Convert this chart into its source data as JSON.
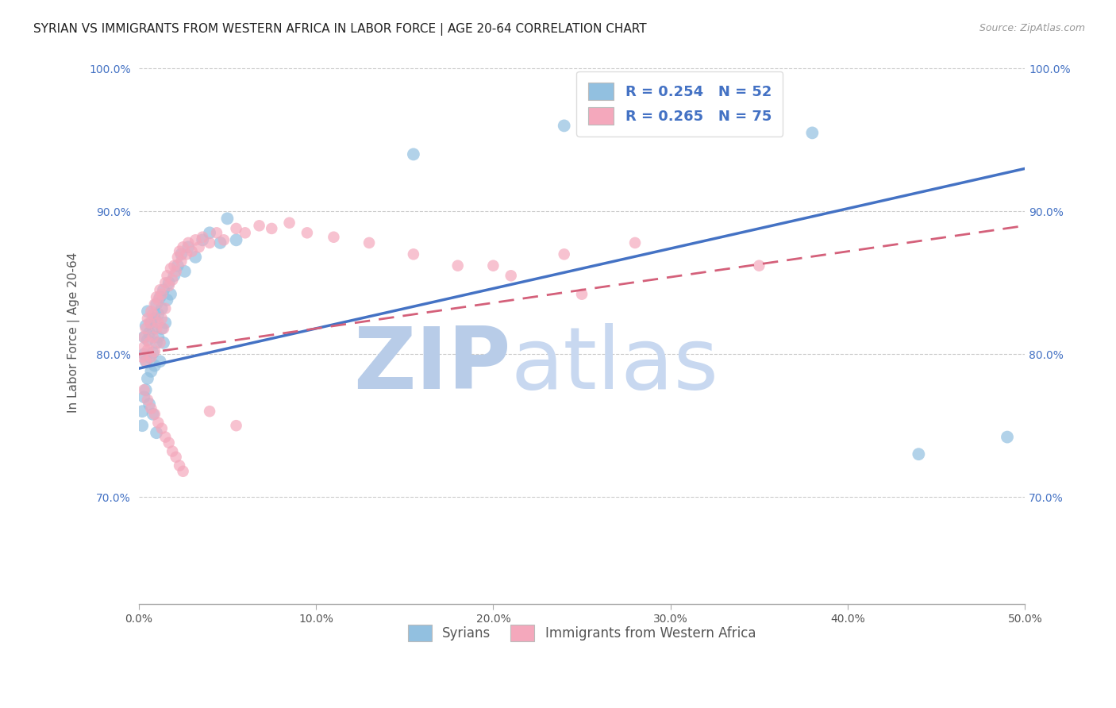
{
  "title": "SYRIAN VS IMMIGRANTS FROM WESTERN AFRICA IN LABOR FORCE | AGE 20-64 CORRELATION CHART",
  "source": "Source: ZipAtlas.com",
  "ylabel": "In Labor Force | Age 20-64",
  "xlim": [
    0.0,
    0.5
  ],
  "ylim": [
    0.625,
    1.005
  ],
  "xticks": [
    0.0,
    0.1,
    0.2,
    0.3,
    0.4,
    0.5
  ],
  "xtick_labels": [
    "0.0%",
    "10.0%",
    "20.0%",
    "30.0%",
    "40.0%",
    "50.0%"
  ],
  "yticks": [
    0.7,
    0.8,
    0.9,
    1.0
  ],
  "ytick_labels": [
    "70.0%",
    "80.0%",
    "90.0%",
    "100.0%"
  ],
  "grid_color": "#cccccc",
  "background_color": "#ffffff",
  "title_fontsize": 11,
  "tick_fontsize": 10,
  "legend_r1": "R = 0.254   N = 52",
  "legend_r2": "R = 0.265   N = 75",
  "legend_label1": "Syrians",
  "legend_label2": "Immigrants from Western Africa",
  "color_blue": "#92C0E0",
  "color_pink": "#F4A8BC",
  "color_blue_dark": "#4472C4",
  "color_pink_dark": "#D4607A",
  "watermark_zip": "ZIP",
  "watermark_atlas": "atlas",
  "watermark_color": "#C8D8F0",
  "syrians_x": [
    0.003,
    0.003,
    0.004,
    0.004,
    0.005,
    0.005,
    0.005,
    0.006,
    0.006,
    0.007,
    0.007,
    0.008,
    0.008,
    0.009,
    0.009,
    0.01,
    0.01,
    0.011,
    0.011,
    0.012,
    0.012,
    0.013,
    0.013,
    0.014,
    0.014,
    0.015,
    0.016,
    0.017,
    0.018,
    0.02,
    0.022,
    0.024,
    0.026,
    0.028,
    0.032,
    0.036,
    0.04,
    0.046,
    0.05,
    0.055,
    0.002,
    0.002,
    0.003,
    0.004,
    0.006,
    0.008,
    0.01,
    0.24,
    0.38,
    0.44,
    0.49,
    0.155
  ],
  "syrians_y": [
    0.8,
    0.812,
    0.795,
    0.82,
    0.783,
    0.81,
    0.83,
    0.798,
    0.815,
    0.788,
    0.822,
    0.801,
    0.818,
    0.792,
    0.825,
    0.808,
    0.835,
    0.812,
    0.828,
    0.795,
    0.84,
    0.818,
    0.832,
    0.808,
    0.845,
    0.822,
    0.838,
    0.85,
    0.842,
    0.855,
    0.862,
    0.87,
    0.858,
    0.875,
    0.868,
    0.88,
    0.885,
    0.878,
    0.895,
    0.88,
    0.76,
    0.75,
    0.77,
    0.775,
    0.765,
    0.758,
    0.745,
    0.96,
    0.955,
    0.73,
    0.742,
    0.94
  ],
  "western_africa_x": [
    0.002,
    0.003,
    0.003,
    0.004,
    0.004,
    0.005,
    0.005,
    0.006,
    0.006,
    0.007,
    0.007,
    0.008,
    0.008,
    0.009,
    0.009,
    0.01,
    0.01,
    0.011,
    0.011,
    0.012,
    0.012,
    0.013,
    0.013,
    0.014,
    0.015,
    0.015,
    0.016,
    0.017,
    0.018,
    0.019,
    0.02,
    0.021,
    0.022,
    0.023,
    0.024,
    0.025,
    0.027,
    0.028,
    0.03,
    0.032,
    0.034,
    0.036,
    0.04,
    0.044,
    0.048,
    0.055,
    0.06,
    0.068,
    0.075,
    0.085,
    0.095,
    0.11,
    0.13,
    0.155,
    0.18,
    0.21,
    0.25,
    0.003,
    0.005,
    0.007,
    0.009,
    0.011,
    0.013,
    0.015,
    0.017,
    0.019,
    0.021,
    0.023,
    0.025,
    0.04,
    0.055,
    0.2,
    0.24,
    0.28,
    0.35
  ],
  "western_africa_y": [
    0.798,
    0.805,
    0.812,
    0.795,
    0.818,
    0.803,
    0.825,
    0.808,
    0.822,
    0.798,
    0.83,
    0.812,
    0.828,
    0.802,
    0.835,
    0.818,
    0.84,
    0.822,
    0.838,
    0.808,
    0.845,
    0.825,
    0.842,
    0.818,
    0.85,
    0.832,
    0.855,
    0.848,
    0.86,
    0.852,
    0.862,
    0.858,
    0.868,
    0.872,
    0.865,
    0.875,
    0.87,
    0.878,
    0.872,
    0.88,
    0.875,
    0.882,
    0.878,
    0.885,
    0.88,
    0.888,
    0.885,
    0.89,
    0.888,
    0.892,
    0.885,
    0.882,
    0.878,
    0.87,
    0.862,
    0.855,
    0.842,
    0.775,
    0.768,
    0.762,
    0.758,
    0.752,
    0.748,
    0.742,
    0.738,
    0.732,
    0.728,
    0.722,
    0.718,
    0.76,
    0.75,
    0.862,
    0.87,
    0.878,
    0.862
  ]
}
